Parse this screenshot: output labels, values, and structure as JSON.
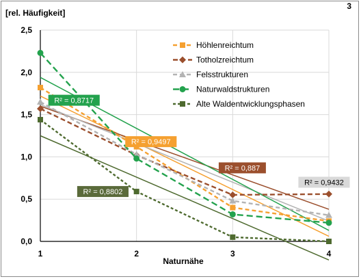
{
  "panel_number": "3",
  "chart_data": {
    "type": "line",
    "ylabel": "[rel. Häufigkeit]",
    "xlabel": "Naturnähe",
    "x": [
      1,
      2,
      3,
      4
    ],
    "xlim": [
      1,
      4
    ],
    "ylim": [
      0,
      2.5
    ],
    "y_ticks": [
      "0,0",
      "0,5",
      "1,0",
      "1,5",
      "2,0",
      "2,5"
    ],
    "x_ticks": [
      "1",
      "2",
      "3",
      "4"
    ],
    "grid": true,
    "legend_position": "top-right",
    "series": [
      {
        "name": "Höhlenreichtum",
        "color": "#f5a030",
        "marker": "square",
        "dash": "6,4",
        "values": [
          1.82,
          1.12,
          0.4,
          0.24
        ],
        "trend": [
          1.72,
          0.06
        ],
        "r2": "R² = 0,9497",
        "r2_label_color": "#f5a030"
      },
      {
        "name": "Totholzreichtum",
        "color": "#9b4f2d",
        "marker": "diamond",
        "dash": "7,4",
        "values": [
          1.57,
          1.02,
          0.55,
          0.56
        ],
        "trend": [
          1.6,
          0.38
        ],
        "r2": "R² = 0,887",
        "r2_label_color": "#9b4f2d"
      },
      {
        "name": "Felsstrukturen",
        "color": "#b3b3b3",
        "marker": "triangle",
        "dash": "6,4",
        "values": [
          1.65,
          1.03,
          0.48,
          0.31
        ],
        "trend": [
          1.62,
          0.24
        ],
        "r2": "R² = 0,9432",
        "r2_label_color": "#d9d9d9"
      },
      {
        "name": "Naturwaldstrukturen",
        "color": "#23a24d",
        "marker": "circle",
        "dash": "9,5",
        "values": [
          2.23,
          0.98,
          0.32,
          0.22
        ],
        "trend": [
          1.94,
          0.13
        ],
        "r2": "R² = 0,8717",
        "r2_label_color": "#23a24d"
      },
      {
        "name": "Alte Waldentwicklungsphasen",
        "color": "#4e6a2f",
        "marker": "square",
        "dash": "4,3",
        "values": [
          1.44,
          0.59,
          0.05,
          0.0
        ],
        "trend": [
          1.25,
          -0.22
        ],
        "r2": "R² = 0,8802",
        "r2_label_color": "#5a6a3a"
      }
    ]
  }
}
